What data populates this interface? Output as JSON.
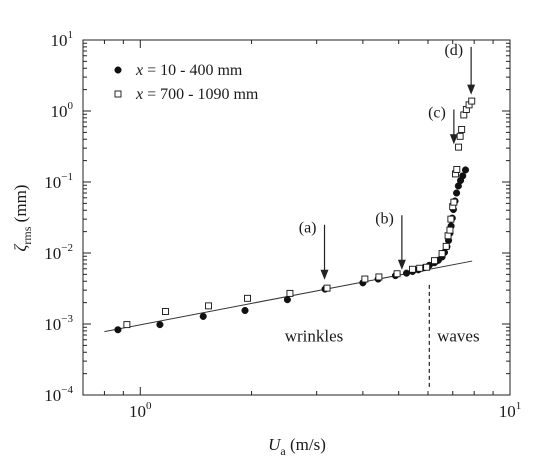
{
  "chart_data": {
    "type": "scatter",
    "x_scale": "log",
    "y_scale": "log",
    "xlim": [
      0.7,
      10
    ],
    "ylim": [
      0.0001,
      10
    ],
    "grid": false,
    "legend_position": "top-left",
    "xlabel": {
      "base": "U",
      "sub": "a",
      "unit": " (m/s)"
    },
    "ylabel": {
      "base": "ζ",
      "sub": "rms",
      "unit": " (mm)"
    },
    "x_ticks": [
      {
        "value": 1,
        "base": "10",
        "exp": "0"
      },
      {
        "value": 10,
        "base": "10",
        "exp": "1"
      }
    ],
    "y_ticks": [
      {
        "value": 0.0001,
        "base": "10",
        "exp": "−4"
      },
      {
        "value": 0.001,
        "base": "10",
        "exp": "−3"
      },
      {
        "value": 0.01,
        "base": "10",
        "exp": "−2"
      },
      {
        "value": 0.1,
        "base": "10",
        "exp": "−1"
      },
      {
        "value": 1,
        "base": "10",
        "exp": "0"
      },
      {
        "value": 10,
        "base": "10",
        "exp": "1"
      }
    ],
    "series": [
      {
        "name": {
          "var": "x",
          "rest": " = 10 - 400 mm"
        },
        "marker": "filled-circle",
        "color": "#111111",
        "points": [
          [
            0.87,
            0.00083
          ],
          [
            1.13,
            0.00098
          ],
          [
            1.48,
            0.00128
          ],
          [
            1.92,
            0.00155
          ],
          [
            2.5,
            0.0022
          ],
          [
            3.16,
            0.0031
          ],
          [
            4.0,
            0.0038
          ],
          [
            4.4,
            0.0043
          ],
          [
            4.9,
            0.0048
          ],
          [
            5.25,
            0.0052
          ],
          [
            5.45,
            0.0055
          ],
          [
            5.65,
            0.0058
          ],
          [
            5.85,
            0.0062
          ],
          [
            6.05,
            0.0067
          ],
          [
            6.25,
            0.0073
          ],
          [
            6.4,
            0.0079
          ],
          [
            6.55,
            0.0088
          ],
          [
            6.65,
            0.0102
          ],
          [
            6.75,
            0.0123
          ],
          [
            6.82,
            0.015
          ],
          [
            6.88,
            0.019
          ],
          [
            6.93,
            0.024
          ],
          [
            6.98,
            0.031
          ],
          [
            7.03,
            0.041
          ],
          [
            7.1,
            0.054
          ],
          [
            7.17,
            0.07
          ],
          [
            7.25,
            0.088
          ],
          [
            7.35,
            0.105
          ],
          [
            7.45,
            0.122
          ],
          [
            7.58,
            0.148
          ]
        ]
      },
      {
        "name": {
          "var": "x",
          "rest": " = 700 - 1090 mm"
        },
        "marker": "open-square",
        "color": "#111111",
        "points": [
          [
            0.92,
            0.00098
          ],
          [
            1.17,
            0.0015
          ],
          [
            1.53,
            0.0018
          ],
          [
            1.95,
            0.0023
          ],
          [
            2.54,
            0.0027
          ],
          [
            3.2,
            0.0032
          ],
          [
            4.05,
            0.0043
          ],
          [
            4.42,
            0.0046
          ],
          [
            4.95,
            0.0051
          ],
          [
            5.45,
            0.0059
          ],
          [
            5.7,
            0.0061
          ],
          [
            5.95,
            0.0063
          ],
          [
            6.25,
            0.0078
          ],
          [
            6.55,
            0.0098
          ],
          [
            6.72,
            0.0124
          ],
          [
            6.8,
            0.0175
          ],
          [
            6.88,
            0.021
          ],
          [
            6.92,
            0.03
          ],
          [
            7.0,
            0.045
          ],
          [
            7.05,
            0.052
          ],
          [
            7.12,
            0.13
          ],
          [
            7.18,
            0.15
          ],
          [
            7.26,
            0.31
          ],
          [
            7.33,
            0.44
          ],
          [
            7.4,
            0.55
          ],
          [
            7.5,
            0.88
          ],
          [
            7.62,
            1.05
          ],
          [
            7.75,
            1.22
          ],
          [
            7.88,
            1.38
          ]
        ]
      }
    ],
    "fit_line": {
      "from": [
        0.8,
        0.00078
      ],
      "to": [
        7.9,
        0.0077
      ]
    },
    "cutoff_line": {
      "x": 6.05,
      "y_from": 0.00013,
      "y_to": 0.0038,
      "style": "dashed"
    },
    "annotations": [
      {
        "label": "(a)",
        "arrow_x": 3.15,
        "arrow_from_y": 0.025,
        "arrow_to_y": 0.0042
      },
      {
        "label": "(b)",
        "arrow_x": 5.1,
        "arrow_from_y": 0.034,
        "arrow_to_y": 0.0058
      },
      {
        "label": "(c)",
        "arrow_x": 7.05,
        "arrow_from_y": 1.05,
        "arrow_to_y": 0.34
      },
      {
        "label": "(d)",
        "arrow_x": 7.85,
        "arrow_from_y": 8.0,
        "arrow_to_y": 1.7
      }
    ],
    "region_labels": [
      {
        "label": "wrinkles",
        "x": 2.95,
        "y": 0.00057
      },
      {
        "label": "waves",
        "x": 7.25,
        "y": 0.00057
      }
    ]
  }
}
